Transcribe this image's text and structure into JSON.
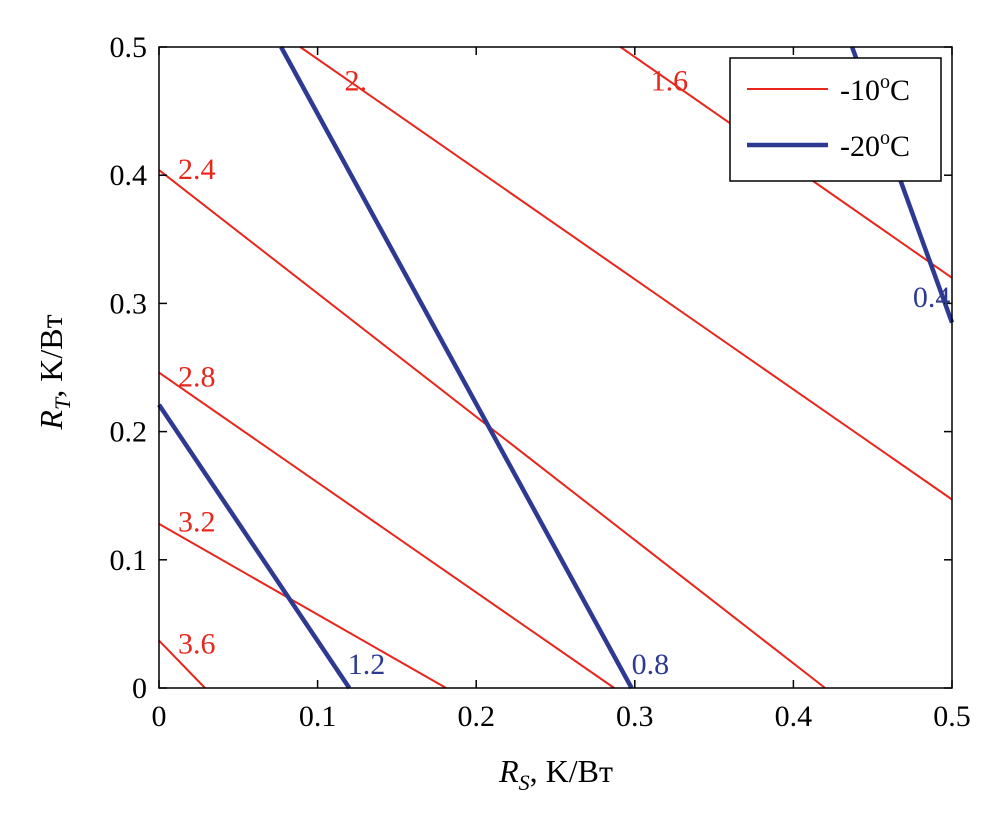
{
  "chart_data": {
    "type": "line",
    "title": "",
    "xlabel": {
      "symbol": "R",
      "subscript": "S",
      "unit": ", K/Вт"
    },
    "ylabel": {
      "symbol": "R",
      "subscript": "T",
      "unit": ", K/Вт"
    },
    "xlim": [
      0,
      0.5
    ],
    "ylim": [
      0,
      0.5
    ],
    "xticks": [
      "0",
      "0.1",
      "0.2",
      "0.3",
      "0.4",
      "0.5"
    ],
    "yticks": [
      "0",
      "0.1",
      "0.2",
      "0.3",
      "0.4",
      "0.5"
    ],
    "grid": false,
    "legend": {
      "position": "top-right",
      "entries": [
        {
          "name": "-10",
          "sup": "o",
          "unit": "C",
          "color": "#e8261c",
          "style": "thin"
        },
        {
          "name": "-20",
          "sup": "o",
          "unit": "C",
          "color": "#2e3a92",
          "style": "thick"
        }
      ]
    },
    "series": [
      {
        "name": "-10oC",
        "label": "3.6",
        "color": "#e8261c",
        "points": [
          [
            0,
            0.037
          ],
          [
            0.029,
            0
          ]
        ]
      },
      {
        "name": "-10oC",
        "label": "3.2",
        "color": "#e8261c",
        "points": [
          [
            0,
            0.128
          ],
          [
            0.181,
            0
          ]
        ]
      },
      {
        "name": "-10oC",
        "label": "2.8",
        "color": "#e8261c",
        "points": [
          [
            0,
            0.246
          ],
          [
            0.287,
            0
          ]
        ]
      },
      {
        "name": "-10oC",
        "label": "2.4",
        "color": "#e8261c",
        "points": [
          [
            0,
            0.404
          ],
          [
            0.42,
            0
          ]
        ]
      },
      {
        "name": "-10oC",
        "label": "2.",
        "color": "#e8261c",
        "points": [
          [
            0.089,
            0.5
          ],
          [
            0.5,
            0.147
          ]
        ]
      },
      {
        "name": "-10oC",
        "label": "1.6",
        "color": "#e8261c",
        "points": [
          [
            0.291,
            0.5
          ],
          [
            0.5,
            0.32
          ]
        ]
      },
      {
        "name": "-20oC",
        "label": "1.2",
        "color": "#2e3a92",
        "points": [
          [
            0,
            0.221
          ],
          [
            0.12,
            0
          ]
        ]
      },
      {
        "name": "-20oC",
        "label": "0.8",
        "color": "#2e3a92",
        "points": [
          [
            0.077,
            0.5
          ],
          [
            0.298,
            0
          ]
        ]
      },
      {
        "name": "-20oC",
        "label": "0.4",
        "color": "#2e3a92",
        "points": [
          [
            0.437,
            0.5
          ],
          [
            0.5,
            0.285
          ]
        ]
      }
    ]
  }
}
